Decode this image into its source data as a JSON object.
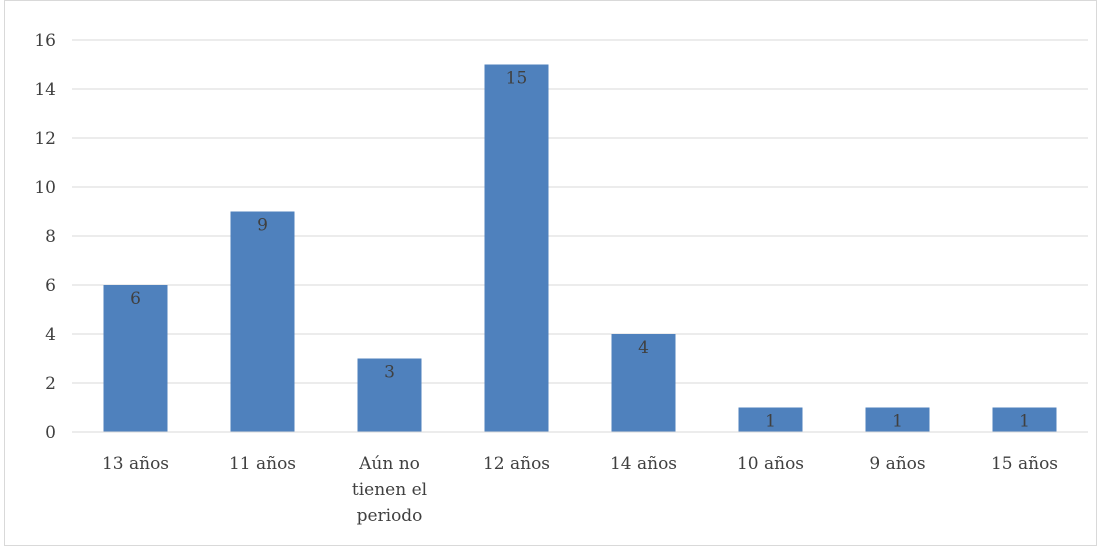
{
  "chart_data": {
    "type": "bar",
    "title": "",
    "xlabel": "",
    "ylabel": "",
    "categories": [
      [
        "13 años"
      ],
      [
        "11 años"
      ],
      [
        "Aún no",
        "tienen el",
        "periodo"
      ],
      [
        "12 años"
      ],
      [
        "14 años"
      ],
      [
        "10 años"
      ],
      [
        "9 años"
      ],
      [
        "15 años"
      ]
    ],
    "values": [
      6,
      9,
      3,
      15,
      4,
      1,
      1,
      1
    ],
    "data_labels": [
      "6",
      "9",
      "3",
      "15",
      "4",
      "1",
      "1",
      "1"
    ],
    "ylim": [
      0,
      16
    ],
    "yticks": [
      "0",
      "2",
      "4",
      "6",
      "8",
      "10",
      "12",
      "14",
      "16"
    ],
    "grid": true,
    "legend": "none",
    "colors": {
      "bar": "#4f81bd",
      "grid": "#d9d9d9",
      "text": "#404040"
    }
  }
}
